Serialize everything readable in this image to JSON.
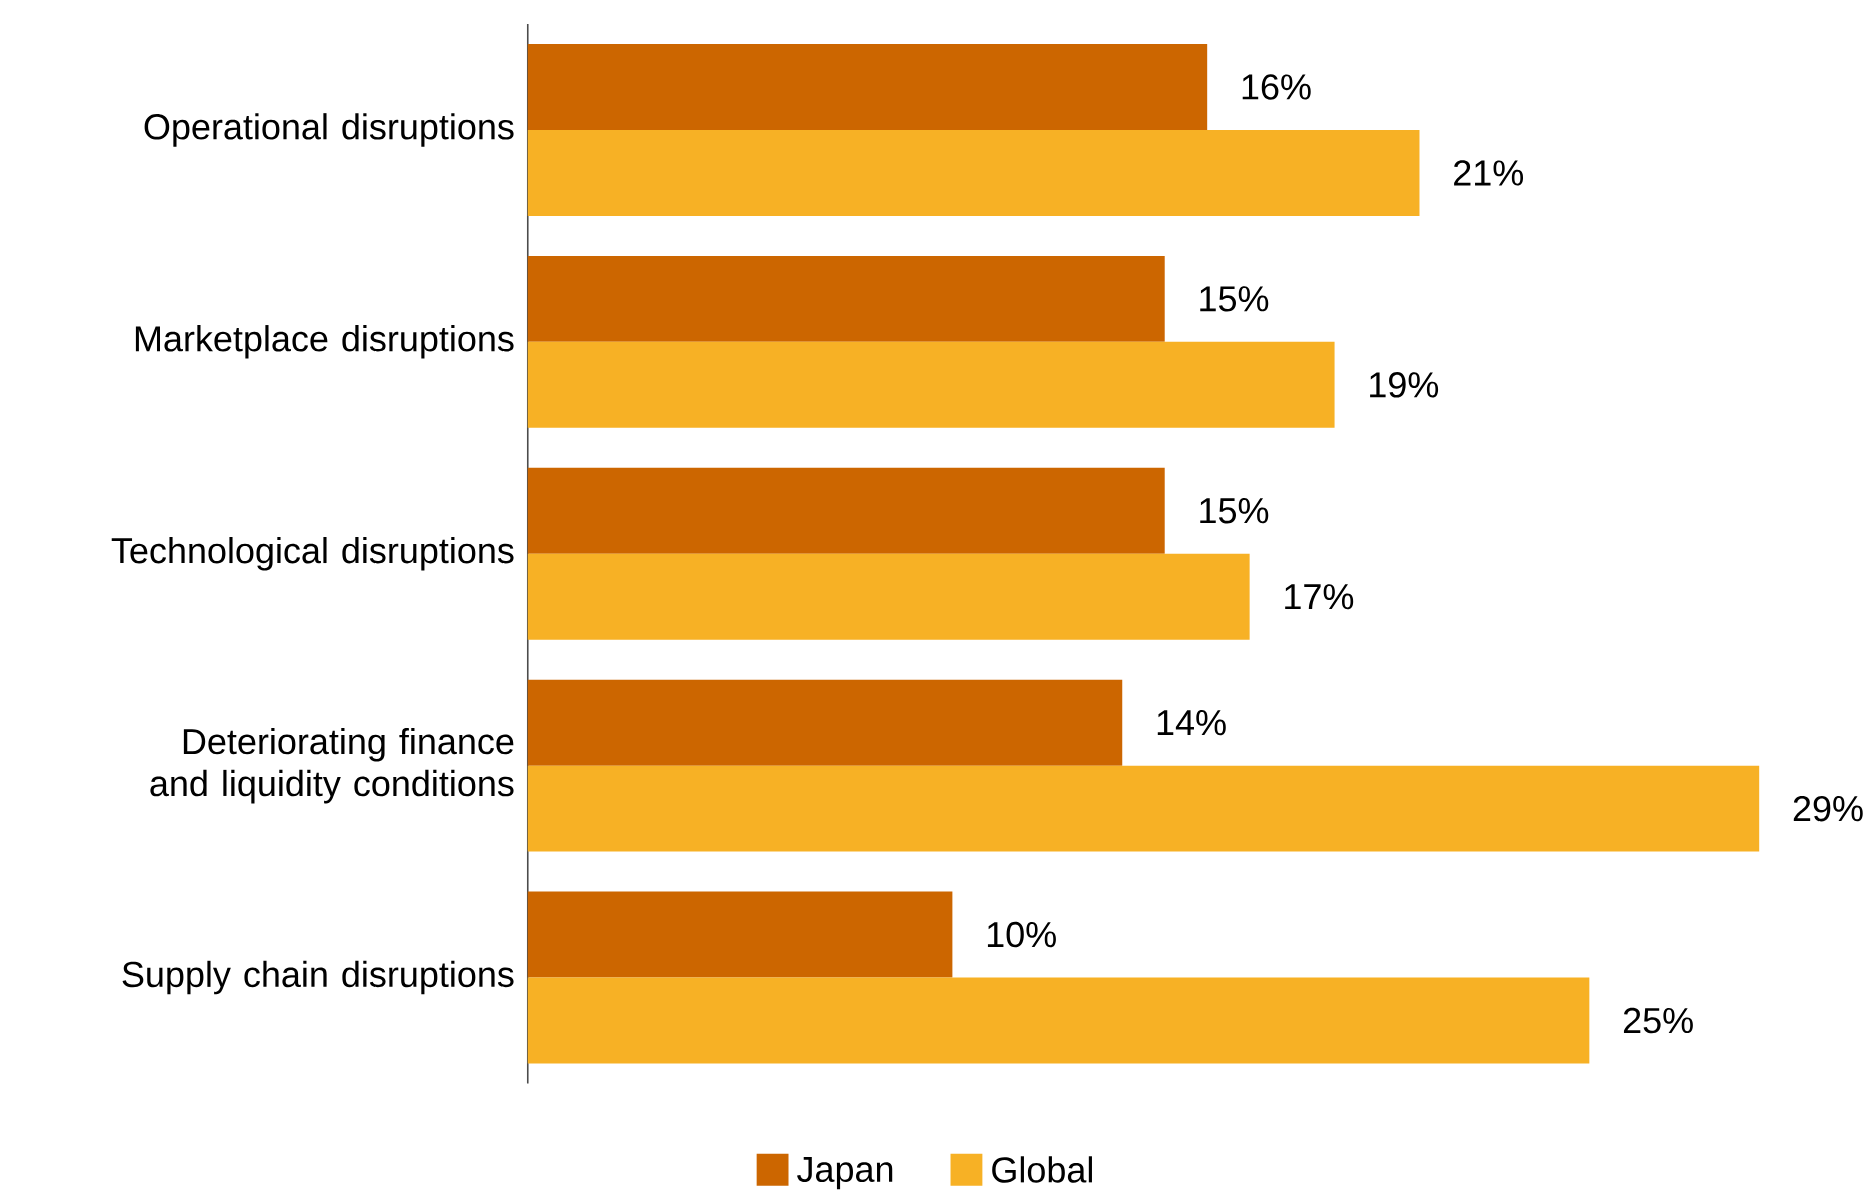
{
  "chart_data": {
    "type": "bar",
    "orientation": "horizontal",
    "categories": [
      "Operational disruptions",
      "Marketplace disruptions",
      "Technological disruptions",
      "Deteriorating finance and liquidity conditions",
      "Supply chain disruptions"
    ],
    "series": [
      {
        "name": "Japan",
        "color": "#cc6600",
        "values": [
          16,
          15,
          15,
          14,
          10
        ],
        "value_labels": [
          "16%",
          "15%",
          "15%",
          "14%",
          "10%"
        ]
      },
      {
        "name": "Global",
        "color": "#f7b125",
        "values": [
          21,
          19,
          17,
          29,
          25
        ],
        "value_labels": [
          "21%",
          "19%",
          "17%",
          "29%",
          "25%"
        ]
      }
    ],
    "legend": "bottom"
  }
}
